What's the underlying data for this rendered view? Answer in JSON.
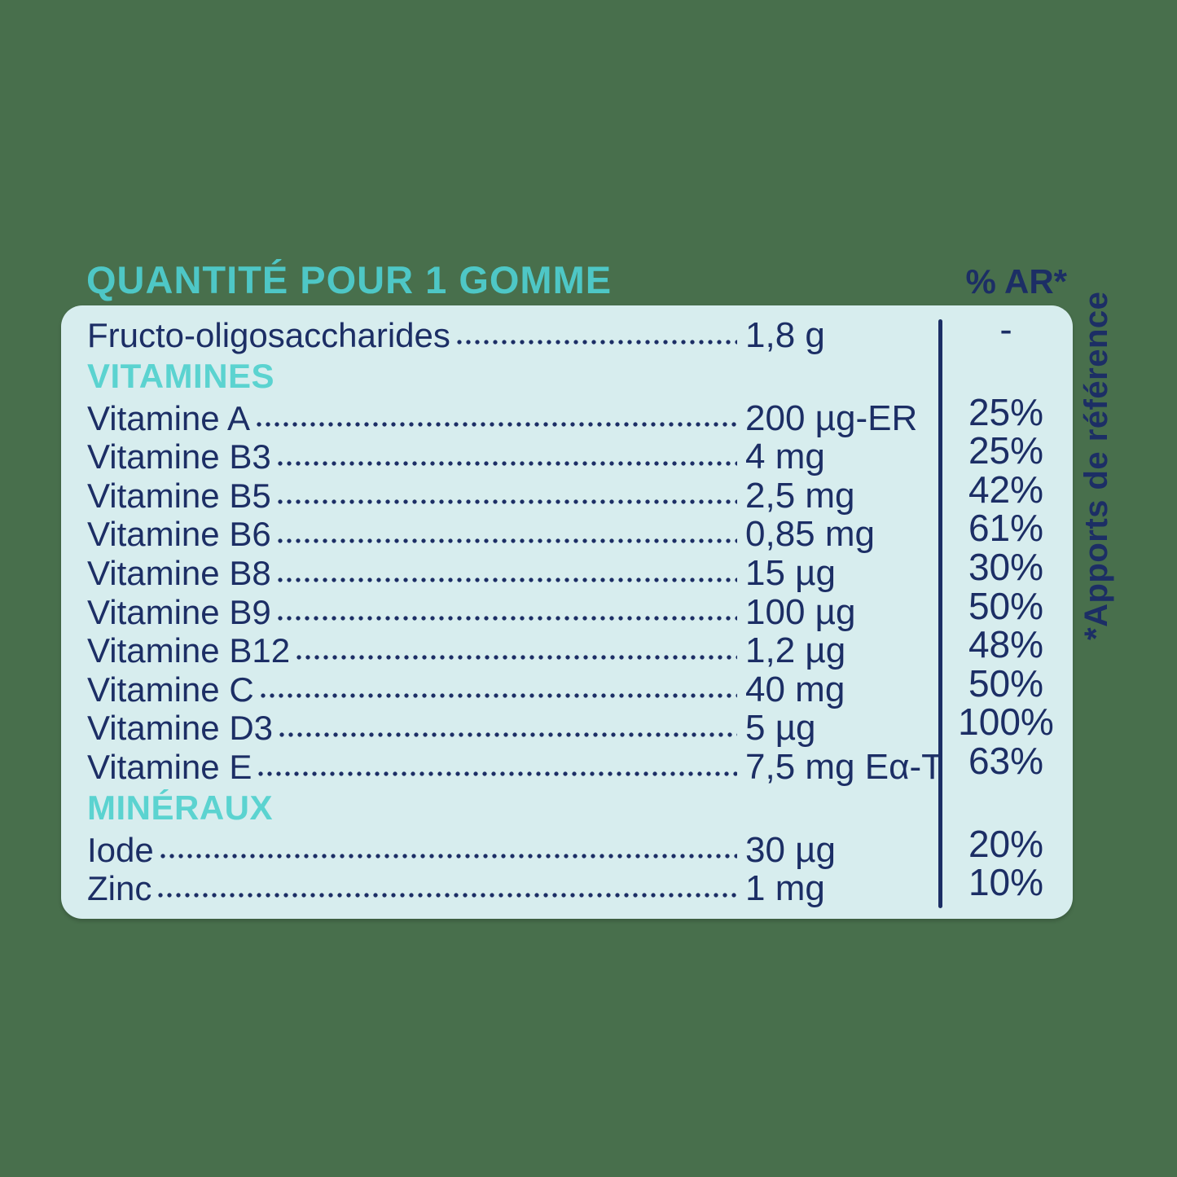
{
  "colors": {
    "background_green": "#486F4C",
    "panel_mint": "#D7EDEE",
    "navy_text": "#1C2E65",
    "title_teal": "#4EC7C6",
    "section_teal": "#5BD3D0"
  },
  "header": {
    "title": "QUANTITÉ POUR 1 GOMME",
    "percent_column": "% AR*"
  },
  "side_note": "*Apports de référence",
  "table": {
    "rows": [
      {
        "type": "item",
        "label": "Fructo-oligosaccharides",
        "value": "1,8 g",
        "percent": "-"
      },
      {
        "type": "section",
        "label": "VITAMINES"
      },
      {
        "type": "item",
        "label": "Vitamine A",
        "value": "200 µg-ER",
        "percent": "25%"
      },
      {
        "type": "item",
        "label": "Vitamine B3",
        "value": "4 mg",
        "percent": "25%"
      },
      {
        "type": "item",
        "label": "Vitamine B5",
        "value": "2,5 mg",
        "percent": "42%"
      },
      {
        "type": "item",
        "label": "Vitamine B6",
        "value": "0,85 mg",
        "percent": "61%"
      },
      {
        "type": "item",
        "label": "Vitamine B8",
        "value": "15 µg",
        "percent": "30%"
      },
      {
        "type": "item",
        "label": "Vitamine B9",
        "value": "100 µg",
        "percent": "50%"
      },
      {
        "type": "item",
        "label": "Vitamine B12",
        "value": "1,2 µg",
        "percent": "48%"
      },
      {
        "type": "item",
        "label": "Vitamine C",
        "value": "40 mg",
        "percent": "50%"
      },
      {
        "type": "item",
        "label": "Vitamine D3",
        "value": "5 µg",
        "percent": "100%"
      },
      {
        "type": "item",
        "label": "Vitamine E",
        "value": "7,5 mg Eα-T",
        "percent": "63%"
      },
      {
        "type": "section",
        "label": "MINÉRAUX"
      },
      {
        "type": "item",
        "label": "Iode",
        "value": "30 µg",
        "percent": "20%"
      },
      {
        "type": "item",
        "label": "Zinc",
        "value": "1 mg",
        "percent": "10%"
      }
    ]
  }
}
